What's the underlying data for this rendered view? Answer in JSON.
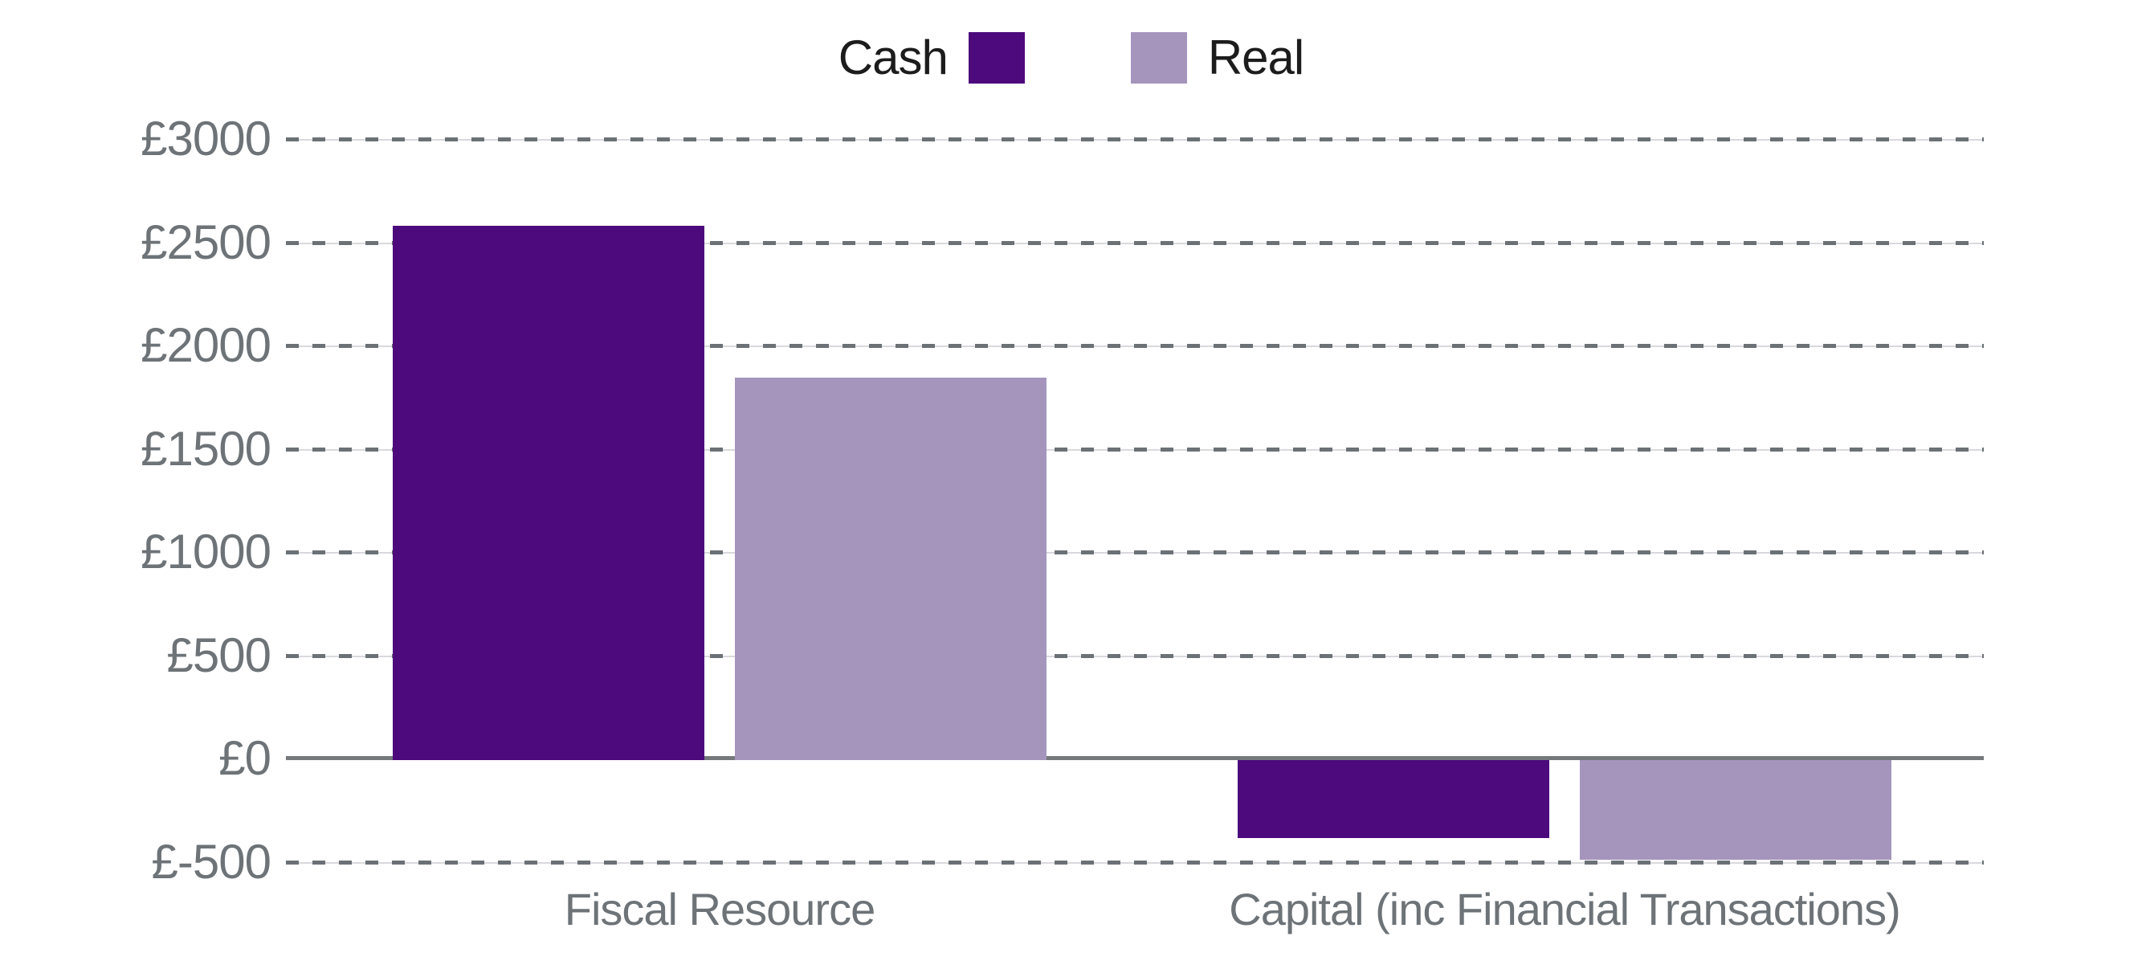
{
  "chart_data": {
    "type": "bar",
    "title": "",
    "xlabel": "",
    "ylabel": "",
    "currency_prefix": "£",
    "categories": [
      "Fiscal Resource",
      "Capital (inc Financial Transactions)"
    ],
    "series": [
      {
        "name": "Cash",
        "color": "#4c0a7d",
        "values": [
          2580,
          -385
        ]
      },
      {
        "name": "Real",
        "color": "#a595bd",
        "values": [
          1845,
          -490
        ]
      }
    ],
    "yticks": [
      {
        "label": "£3000",
        "value": 3000
      },
      {
        "label": "£2500",
        "value": 2500
      },
      {
        "label": "£2000",
        "value": 2000
      },
      {
        "label": "£1500",
        "value": 1500
      },
      {
        "label": "£1000",
        "value": 1000
      },
      {
        "label": "£500",
        "value": 500
      },
      {
        "label": "£0",
        "value": 0
      },
      {
        "label": "£-500",
        "value": -500
      }
    ],
    "ylim": [
      -500,
      3000
    ],
    "grid": "dashed-horizontal",
    "zero_line": true,
    "legend_position": "top-center",
    "colors": {
      "background": "#ffffff",
      "grid_dash": "#6b7175",
      "grid_underline": "#d9d9dd",
      "zero_axis": "#75797c",
      "axis_text": "#6d7377",
      "legend_text": "#1c1c1c"
    }
  }
}
